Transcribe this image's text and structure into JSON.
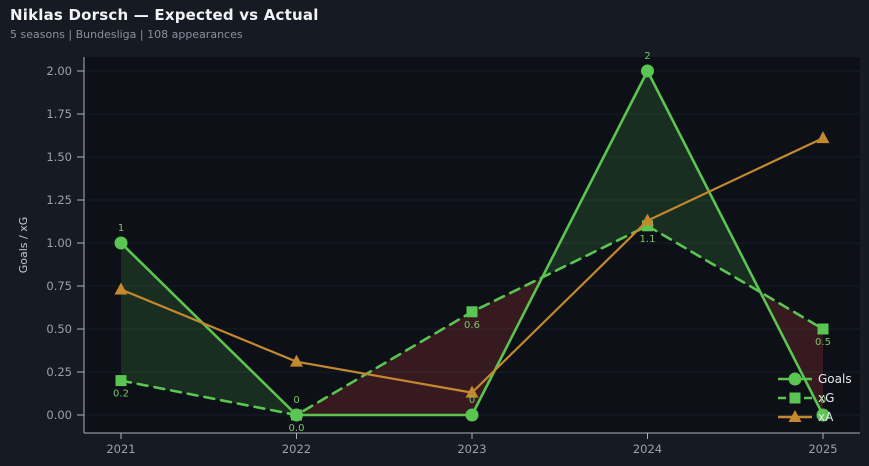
{
  "header": {
    "title": "Niklas Dorsch — Expected vs Actual",
    "subtitle": "5 seasons | Bundesliga | 108 appearances"
  },
  "chart_data": {
    "type": "line",
    "title": "Niklas Dorsch — Expected vs Actual",
    "subtitle": "5 seasons | Bundesliga | 108 appearances",
    "x": [
      "2021",
      "2022",
      "2023",
      "2024",
      "2025"
    ],
    "series": [
      {
        "name": "Goals",
        "marker": "circle",
        "line": "solid",
        "values": [
          1,
          0,
          0,
          2,
          0
        ],
        "labels": [
          "1",
          "0",
          "0",
          "2",
          "0"
        ],
        "label_side": "above"
      },
      {
        "name": "xG",
        "marker": "square",
        "line": "dashed",
        "values": [
          0.2,
          0.0,
          0.6,
          1.1,
          0.5
        ],
        "labels": [
          "0.2",
          "0.0",
          "0.6",
          "1.1",
          "0.5"
        ],
        "label_side": "below"
      },
      {
        "name": "xA",
        "marker": "triangle",
        "line": "solid",
        "values": [
          0.73,
          0.31,
          0.13,
          1.13,
          1.61
        ],
        "labels": [],
        "label_side": "none"
      }
    ],
    "ylabel": "Goals / xG",
    "yticks": [
      "0.00",
      "0.25",
      "0.50",
      "0.75",
      "1.00",
      "1.25",
      "1.50",
      "1.75",
      "2.00"
    ],
    "ylim": [
      -0.1,
      2.08
    ],
    "grid": true,
    "legend_position": "lower-right",
    "fill_between": {
      "positive_when": "Goals > xG",
      "negative_when": "xG > Goals"
    },
    "colors": {
      "page_bg": "#151a23",
      "plot_bg": "#0d1016",
      "grid": "#171d28",
      "spine": "#aab0ba",
      "tick_label": "#9ba1ab",
      "axis_label": "#c2c7cf",
      "goals_green": "#5bc551",
      "xg_green": "#5bc551",
      "xa_orange": "#c4882e",
      "annotation_green": "#7cc468",
      "legend_text": "#e6e8eb",
      "fill_over": "rgba(91,197,81,0.17)",
      "fill_under": "rgba(199,62,62,0.22)"
    }
  }
}
